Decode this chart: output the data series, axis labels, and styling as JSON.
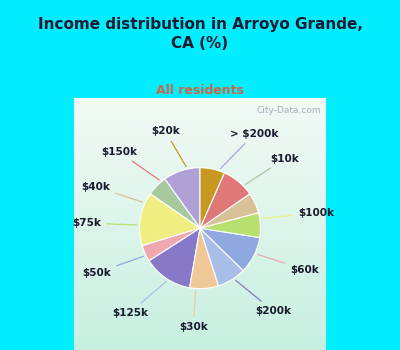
{
  "title": "Income distribution in Arroyo Grande,\nCA (%)",
  "subtitle": "All residents",
  "title_color": "#1a1a2e",
  "subtitle_color": "#cc6644",
  "fig_bg": "#00eeff",
  "chart_bg_color": "#e0f0e8",
  "watermark": "City-Data.com",
  "labels": [
    "> $200k",
    "$10k",
    "$100k",
    "$60k",
    "$200k",
    "$30k",
    "$125k",
    "$50k",
    "$75k",
    "$40k",
    "$150k",
    "$20k"
  ],
  "values": [
    9,
    5,
    13,
    4,
    12,
    7,
    7,
    9,
    6,
    5,
    8,
    6
  ],
  "colors": [
    "#b0a0d8",
    "#a8c8a0",
    "#f0ee80",
    "#f0a8b0",
    "#8878c8",
    "#f0c898",
    "#a8bee8",
    "#90a8e0",
    "#b8e070",
    "#d8c098",
    "#e07878",
    "#c89820"
  ],
  "figsize": [
    4.0,
    3.5
  ],
  "dpi": 100
}
